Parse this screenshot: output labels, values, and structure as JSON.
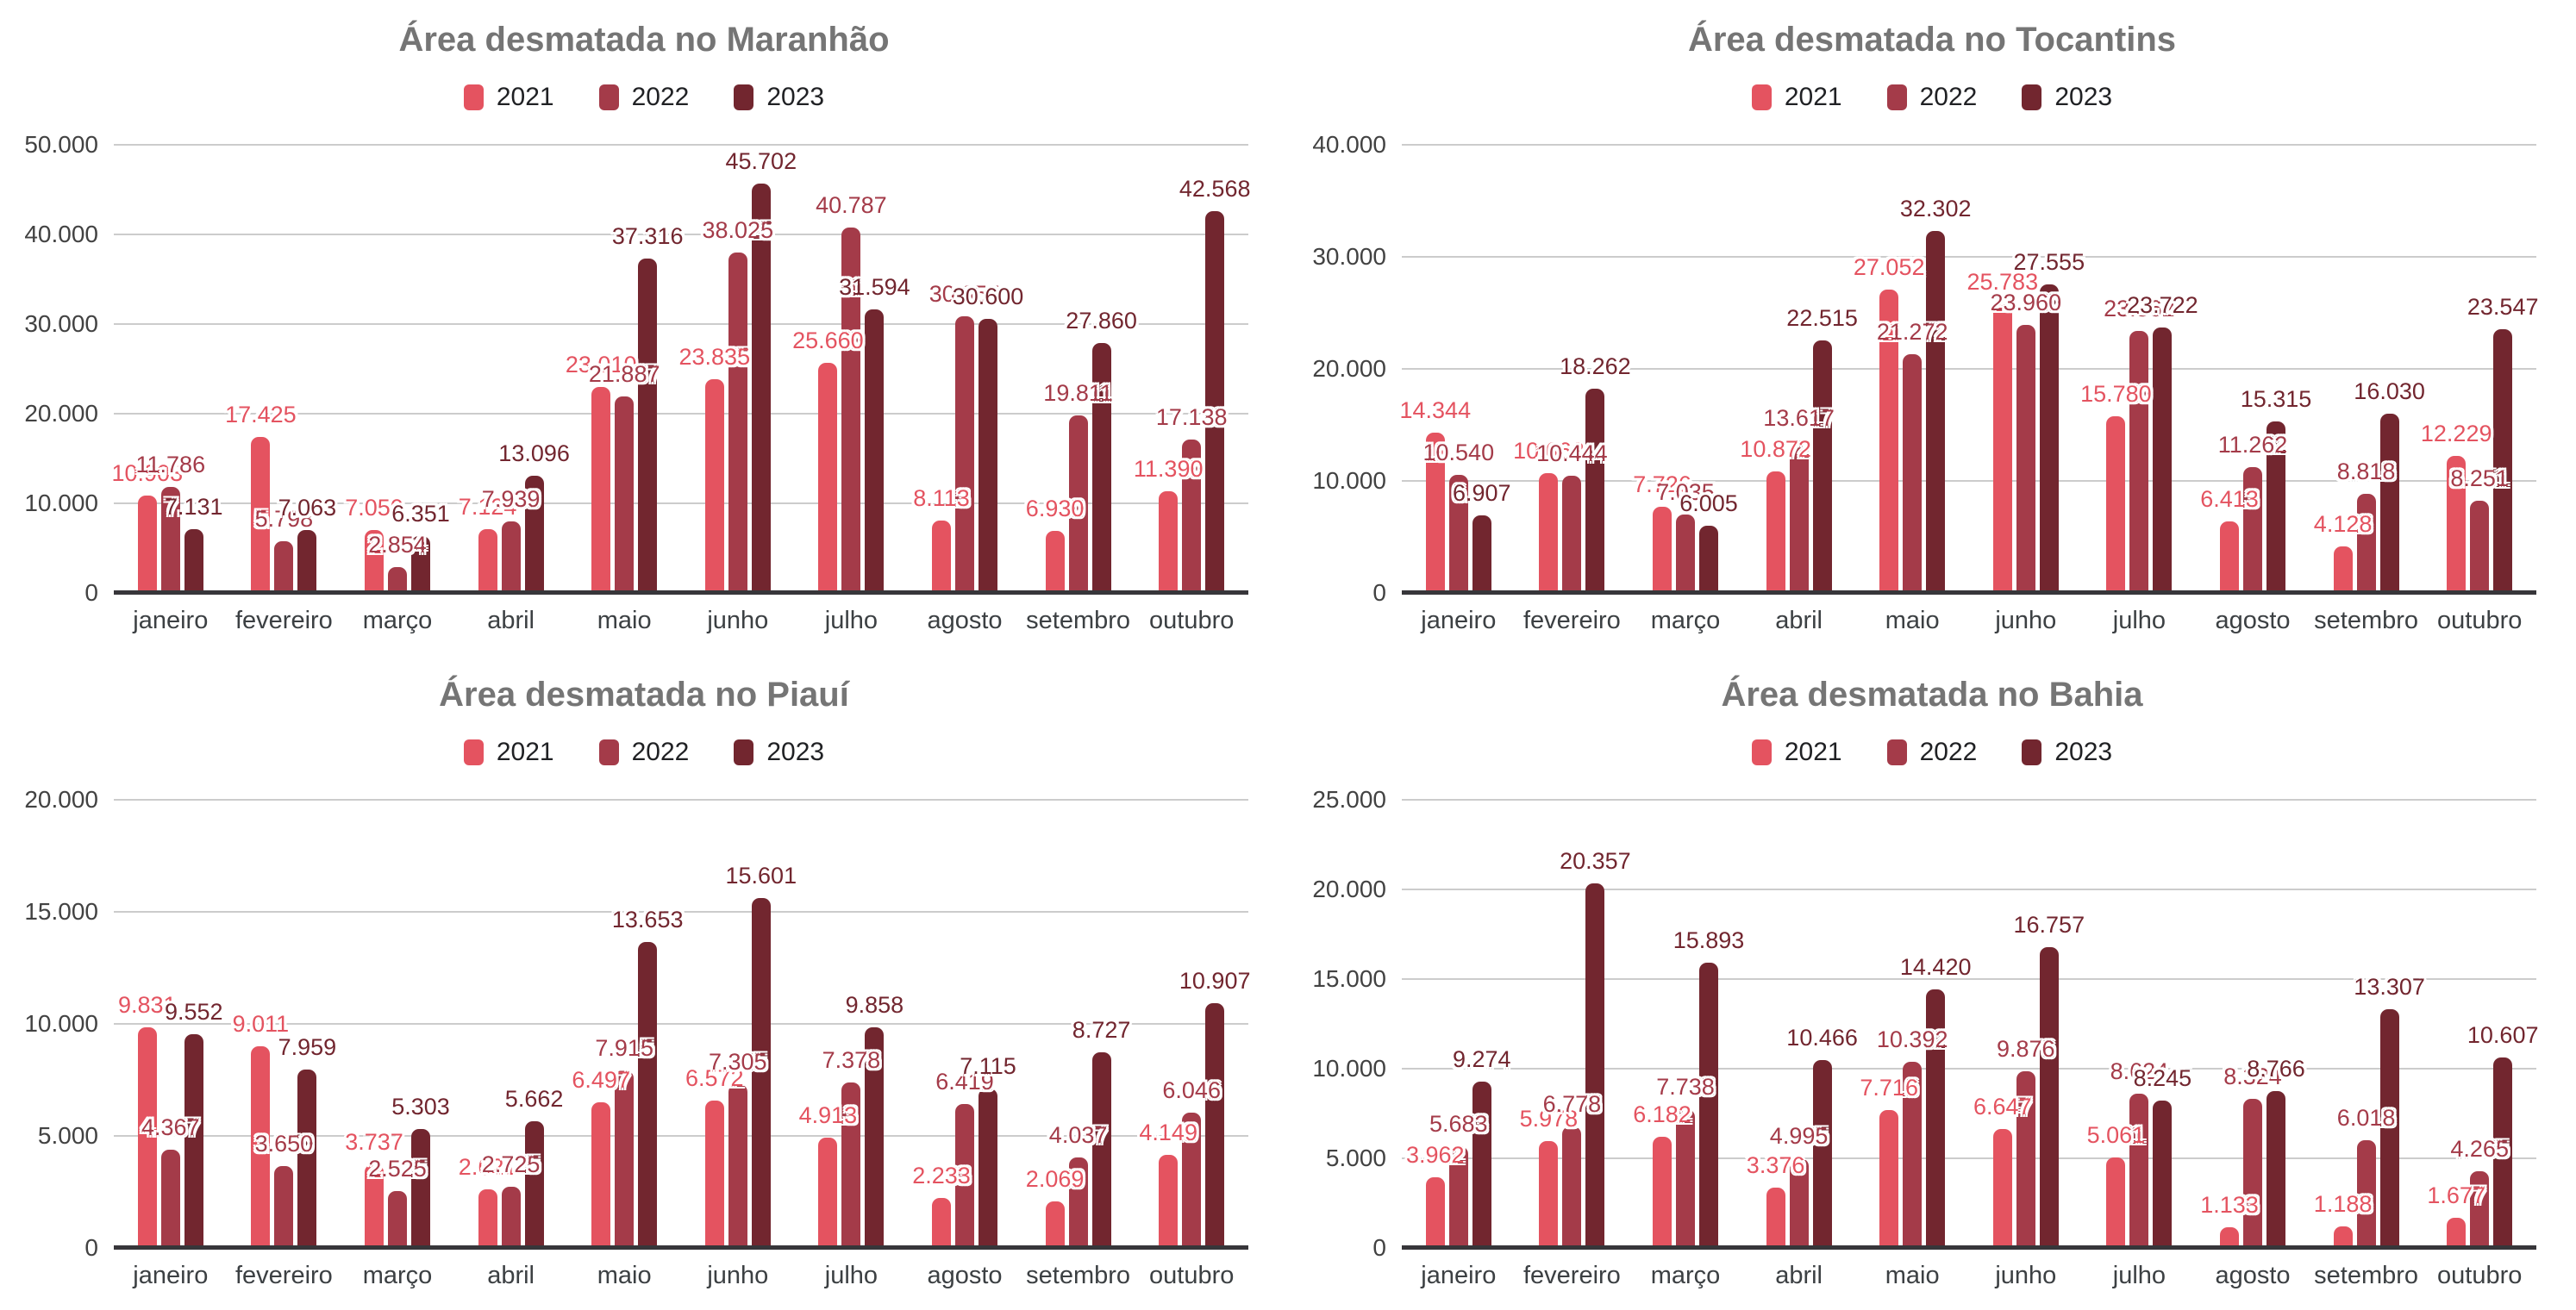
{
  "style": {
    "background": "#ffffff",
    "title_color": "#757575",
    "axis_label_color": "#424242",
    "gridline_color": "#cccccc",
    "baseline_color": "#37363a",
    "series_colors": [
      "#e45360",
      "#a43b49",
      "#72262f"
    ],
    "number_format": "thousands-dot"
  },
  "chart_data": [
    {
      "type": "bar",
      "title": "Área desmatada no Maranhão",
      "legend_position": "top",
      "grid": true,
      "categories": [
        "janeiro",
        "fevereiro",
        "março",
        "abril",
        "maio",
        "junho",
        "julho",
        "agosto",
        "setembro",
        "outubro"
      ],
      "ylim": [
        0,
        50000
      ],
      "yticks": [
        0,
        10000,
        20000,
        30000,
        40000,
        50000
      ],
      "series": [
        {
          "name": "2021",
          "values": [
            10903,
            17425,
            7050,
            7124,
            23010,
            23835,
            25660,
            8113,
            6930,
            11390
          ]
        },
        {
          "name": "2022",
          "values": [
            11786,
            5798,
            2854,
            7939,
            21887,
            38025,
            40787,
            30855,
            19811,
            17138
          ]
        },
        {
          "name": "2023",
          "values": [
            7131,
            7063,
            6351,
            13096,
            37316,
            45702,
            31594,
            30600,
            27860,
            42568
          ]
        }
      ]
    },
    {
      "type": "bar",
      "title": "Área desmatada no Tocantins",
      "legend_position": "top",
      "grid": true,
      "categories": [
        "janeiro",
        "fevereiro",
        "março",
        "abril",
        "maio",
        "junho",
        "julho",
        "agosto",
        "setembro",
        "outubro"
      ],
      "ylim": [
        0,
        40000
      ],
      "yticks": [
        0,
        10000,
        20000,
        30000,
        40000
      ],
      "series": [
        {
          "name": "2021",
          "values": [
            14344,
            10663,
            7726,
            10872,
            27052,
            25783,
            15780,
            6413,
            4128,
            12229
          ]
        },
        {
          "name": "2022",
          "values": [
            10540,
            10444,
            7035,
            13617,
            21272,
            23960,
            23362,
            11262,
            8818,
            8251
          ]
        },
        {
          "name": "2023",
          "values": [
            6907,
            18262,
            6005,
            22515,
            32302,
            27555,
            23722,
            15315,
            16030,
            23547
          ]
        }
      ]
    },
    {
      "type": "bar",
      "title": "Área desmatada no Piauí",
      "legend_position": "top",
      "grid": true,
      "categories": [
        "janeiro",
        "fevereiro",
        "março",
        "abril",
        "maio",
        "junho",
        "julho",
        "agosto",
        "setembro",
        "outubro"
      ],
      "ylim": [
        0,
        20000
      ],
      "yticks": [
        0,
        5000,
        10000,
        15000,
        20000
      ],
      "series": [
        {
          "name": "2021",
          "values": [
            9831,
            9011,
            3737,
            2621,
            6497,
            6572,
            4913,
            2233,
            2069,
            4149
          ]
        },
        {
          "name": "2022",
          "values": [
            4367,
            3650,
            2525,
            2725,
            7915,
            7305,
            7378,
            6419,
            4037,
            6046
          ]
        },
        {
          "name": "2023",
          "values": [
            9552,
            7959,
            5303,
            5662,
            13653,
            15601,
            9858,
            7115,
            8727,
            10907
          ]
        }
      ]
    },
    {
      "type": "bar",
      "title": "Área desmatada no Bahia",
      "legend_position": "top",
      "grid": true,
      "categories": [
        "janeiro",
        "fevereiro",
        "março",
        "abril",
        "maio",
        "junho",
        "julho",
        "agosto",
        "setembro",
        "outubro"
      ],
      "ylim": [
        0,
        25000
      ],
      "yticks": [
        0,
        5000,
        10000,
        15000,
        20000,
        25000
      ],
      "series": [
        {
          "name": "2021",
          "values": [
            3962,
            5978,
            6182,
            3376,
            7716,
            6647,
            5061,
            1133,
            1188,
            1677
          ]
        },
        {
          "name": "2022",
          "values": [
            5683,
            6778,
            7738,
            4995,
            10392,
            9876,
            8624,
            8324,
            6018,
            4265
          ]
        },
        {
          "name": "2023",
          "values": [
            9274,
            20357,
            15893,
            10466,
            14420,
            16757,
            8245,
            8766,
            13307,
            10607
          ]
        }
      ]
    }
  ]
}
